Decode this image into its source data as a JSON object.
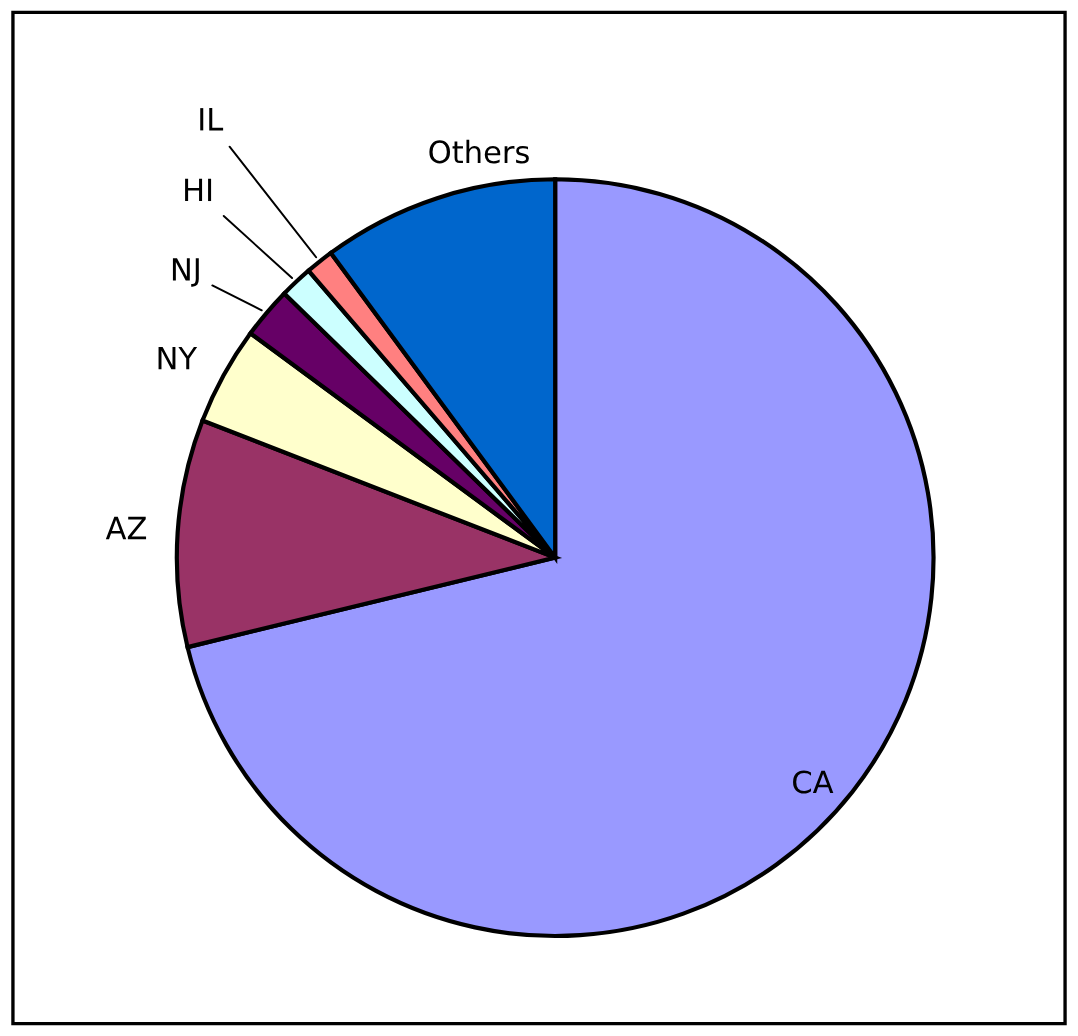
{
  "chart_data": {
    "type": "pie",
    "categories": [
      "CA",
      "AZ",
      "NY",
      "NJ",
      "HI",
      "IL",
      "Others"
    ],
    "values": [
      71.2,
      9.7,
      4.2,
      2.2,
      1.4,
      1.2,
      10.1
    ],
    "colors": [
      "#9999ff",
      "#993366",
      "#ffffcc",
      "#660066",
      "#ccffff",
      "#ff8080",
      "#0066cc"
    ]
  }
}
